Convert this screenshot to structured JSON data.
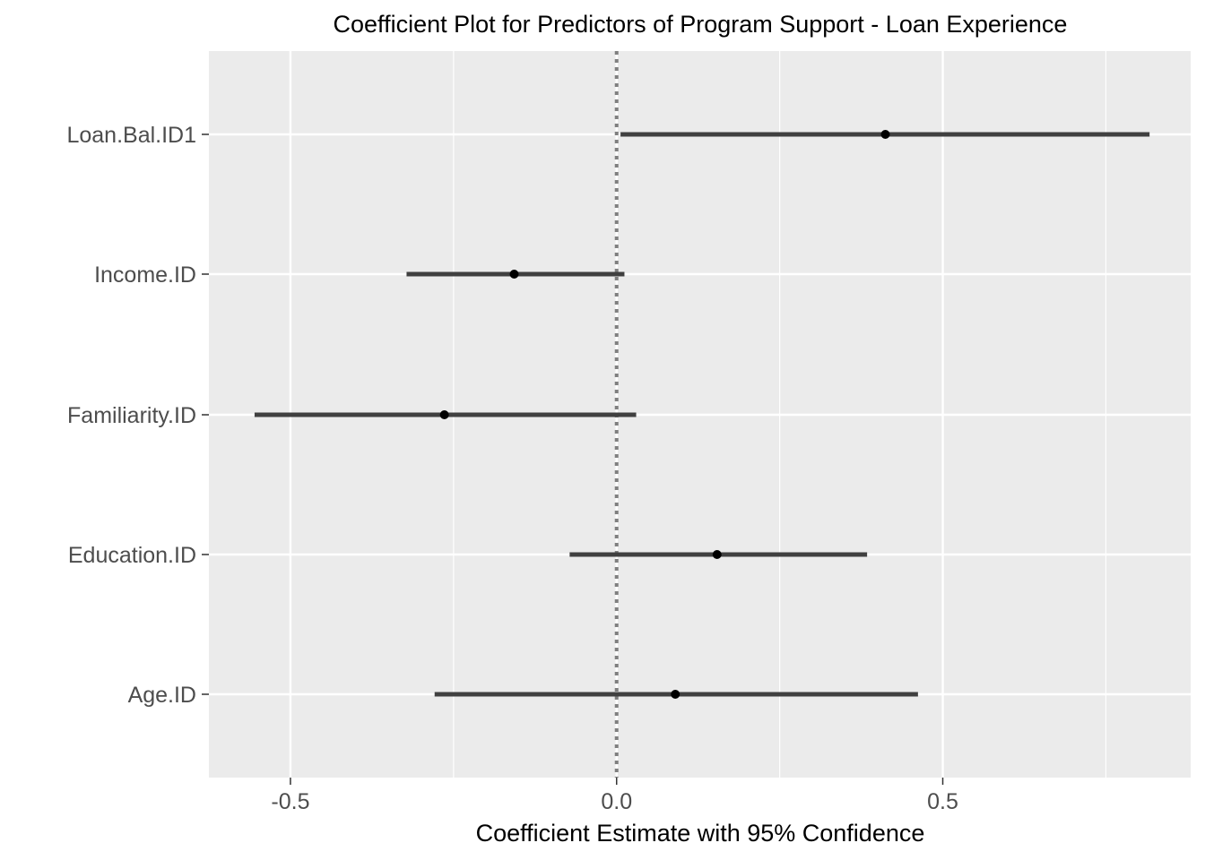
{
  "chart_data": {
    "type": "coefficient",
    "title": "Coefficient Plot for Predictors of Program Support - Loan Experience",
    "xlabel": "Coefficient Estimate with 95% Confidence",
    "ylabel": "",
    "xlim": [
      -0.625,
      0.88
    ],
    "x_ticks": [
      -0.5,
      0.0,
      0.5
    ],
    "x_tick_labels": [
      "-0.5",
      "0.0",
      "0.5"
    ],
    "x_minor_grid": [
      -0.25,
      0.25,
      0.75
    ],
    "reference_line": 0,
    "grid": true,
    "categories": [
      "Loan.Bal.ID1",
      "Income.ID",
      "Familiarity.ID",
      "Education.ID",
      "Age.ID"
    ],
    "estimates": [
      0.412,
      -0.157,
      -0.264,
      0.154,
      0.09
    ],
    "lower": [
      0.006,
      -0.322,
      -0.555,
      -0.072,
      -0.279
    ],
    "upper": [
      0.817,
      0.012,
      0.03,
      0.384,
      0.462
    ],
    "colors": {
      "panel": "#ebebeb",
      "grid": "#ffffff",
      "interval": "#404040",
      "point": "#000000",
      "reference": "#7f7f7f",
      "axis_text": "#4d4d4d"
    }
  }
}
